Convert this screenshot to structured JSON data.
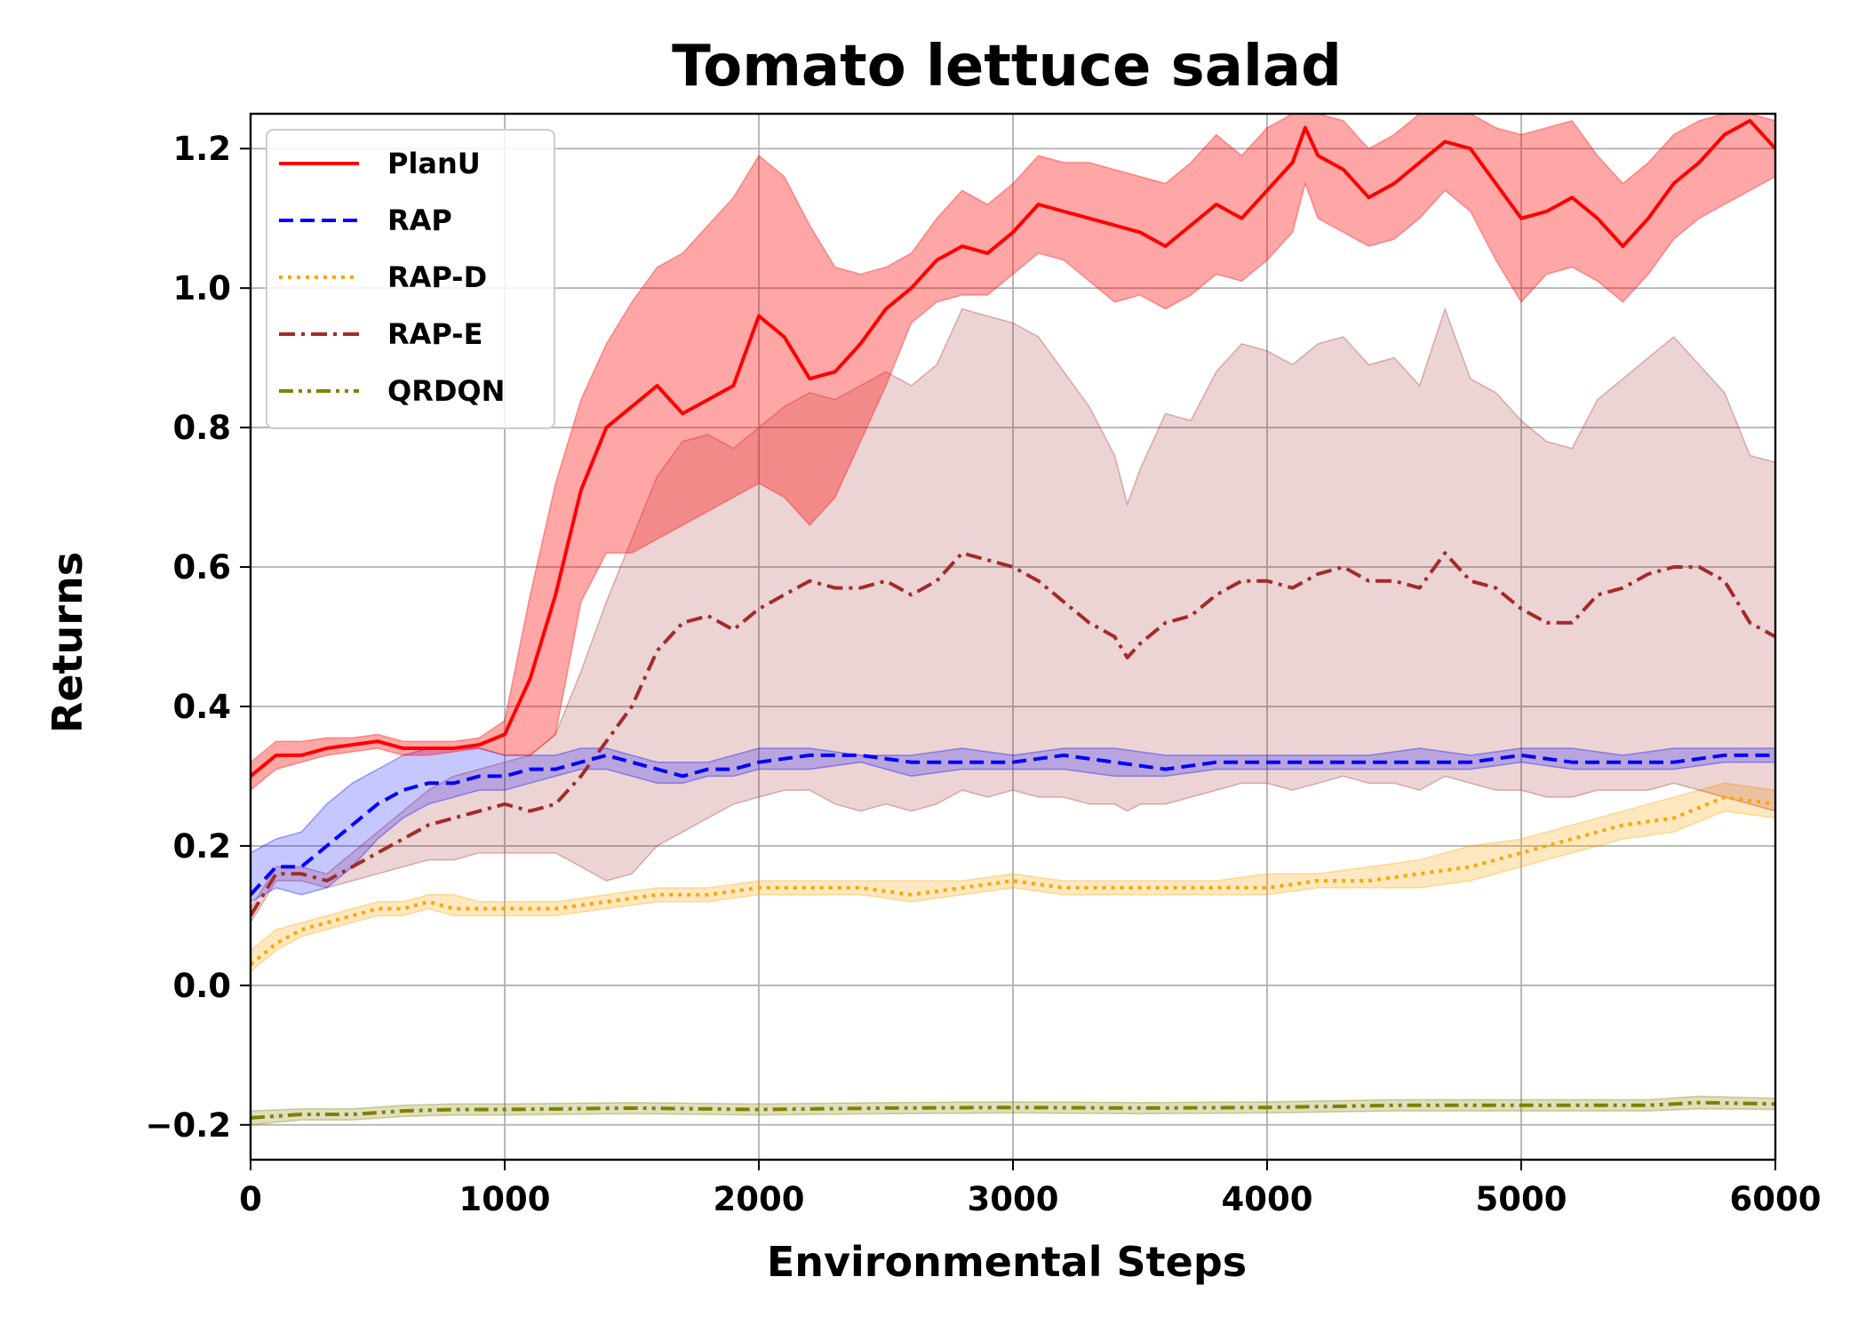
{
  "chart_data": {
    "type": "line",
    "title": "Tomato lettuce salad",
    "xlabel": "Environmental Steps",
    "ylabel": "Returns",
    "xlim": [
      0,
      6000
    ],
    "ylim": [
      -0.25,
      1.25
    ],
    "xticks": [
      0,
      1000,
      2000,
      3000,
      4000,
      5000,
      6000
    ],
    "xtick_labels": [
      "0",
      "1000",
      "2000",
      "3000",
      "4000",
      "5000",
      "6000"
    ],
    "yticks": [
      -0.2,
      0.0,
      0.2,
      0.4,
      0.6,
      0.8,
      1.0,
      1.2
    ],
    "ytick_labels": [
      "−0.2",
      "0.0",
      "0.2",
      "0.4",
      "0.6",
      "0.8",
      "1.0",
      "1.2"
    ],
    "grid": true,
    "legend_position": "top-left",
    "series": [
      {
        "name": "PlanU",
        "color": "#ff0000",
        "dash": "solid",
        "x": [
          0,
          100,
          200,
          300,
          400,
          500,
          600,
          700,
          800,
          900,
          1000,
          1100,
          1200,
          1300,
          1400,
          1500,
          1600,
          1700,
          1800,
          1900,
          2000,
          2100,
          2200,
          2300,
          2400,
          2500,
          2600,
          2700,
          2800,
          2900,
          3000,
          3100,
          3200,
          3300,
          3400,
          3500,
          3600,
          3700,
          3800,
          3900,
          4000,
          4100,
          4150,
          4200,
          4300,
          4400,
          4500,
          4600,
          4700,
          4800,
          4900,
          5000,
          5100,
          5200,
          5300,
          5400,
          5500,
          5600,
          5700,
          5800,
          5900,
          6000
        ],
        "y": [
          0.3,
          0.33,
          0.33,
          0.34,
          0.345,
          0.35,
          0.34,
          0.34,
          0.34,
          0.345,
          0.36,
          0.44,
          0.56,
          0.71,
          0.8,
          0.83,
          0.86,
          0.82,
          0.84,
          0.86,
          0.96,
          0.93,
          0.87,
          0.88,
          0.92,
          0.97,
          1.0,
          1.04,
          1.06,
          1.05,
          1.08,
          1.12,
          1.11,
          1.1,
          1.09,
          1.08,
          1.06,
          1.09,
          1.12,
          1.1,
          1.14,
          1.18,
          1.23,
          1.19,
          1.17,
          1.13,
          1.15,
          1.18,
          1.21,
          1.2,
          1.15,
          1.1,
          1.11,
          1.13,
          1.1,
          1.06,
          1.1,
          1.15,
          1.18,
          1.22,
          1.24,
          1.2
        ],
        "band_low": [
          0.28,
          0.31,
          0.32,
          0.33,
          0.335,
          0.34,
          0.33,
          0.33,
          0.335,
          0.34,
          0.33,
          0.33,
          0.36,
          0.55,
          0.62,
          0.62,
          0.64,
          0.66,
          0.68,
          0.7,
          0.72,
          0.7,
          0.66,
          0.7,
          0.78,
          0.86,
          0.95,
          0.98,
          0.99,
          0.99,
          1.02,
          1.05,
          1.04,
          1.01,
          0.98,
          0.99,
          0.97,
          0.99,
          1.02,
          1.01,
          1.04,
          1.08,
          1.15,
          1.1,
          1.08,
          1.06,
          1.07,
          1.1,
          1.14,
          1.11,
          1.04,
          0.98,
          1.02,
          1.03,
          1.01,
          0.98,
          1.02,
          1.07,
          1.1,
          1.12,
          1.14,
          1.16
        ],
        "band_high": [
          0.32,
          0.35,
          0.35,
          0.355,
          0.355,
          0.36,
          0.35,
          0.35,
          0.35,
          0.355,
          0.38,
          0.56,
          0.72,
          0.84,
          0.92,
          0.98,
          1.03,
          1.05,
          1.09,
          1.13,
          1.19,
          1.16,
          1.09,
          1.03,
          1.02,
          1.03,
          1.05,
          1.1,
          1.14,
          1.12,
          1.15,
          1.19,
          1.18,
          1.18,
          1.17,
          1.16,
          1.15,
          1.18,
          1.22,
          1.19,
          1.23,
          1.25,
          1.25,
          1.25,
          1.24,
          1.2,
          1.22,
          1.25,
          1.25,
          1.25,
          1.23,
          1.22,
          1.23,
          1.24,
          1.19,
          1.15,
          1.18,
          1.22,
          1.24,
          1.25,
          1.25,
          1.24
        ]
      },
      {
        "name": "RAP",
        "color": "#0000ff",
        "dash": "dashed",
        "x": [
          0,
          100,
          200,
          300,
          400,
          500,
          600,
          700,
          800,
          900,
          1000,
          1100,
          1200,
          1300,
          1400,
          1500,
          1600,
          1700,
          1800,
          1900,
          2000,
          2200,
          2400,
          2600,
          2800,
          3000,
          3200,
          3400,
          3600,
          3800,
          4000,
          4200,
          4400,
          4600,
          4800,
          5000,
          5200,
          5400,
          5600,
          5800,
          6000
        ],
        "y": [
          0.13,
          0.17,
          0.17,
          0.2,
          0.23,
          0.26,
          0.28,
          0.29,
          0.29,
          0.3,
          0.3,
          0.31,
          0.31,
          0.32,
          0.33,
          0.32,
          0.31,
          0.3,
          0.31,
          0.31,
          0.32,
          0.33,
          0.33,
          0.32,
          0.32,
          0.32,
          0.33,
          0.32,
          0.31,
          0.32,
          0.32,
          0.32,
          0.32,
          0.32,
          0.32,
          0.33,
          0.32,
          0.32,
          0.32,
          0.33,
          0.33
        ],
        "band_low": [
          0.12,
          0.14,
          0.13,
          0.14,
          0.17,
          0.21,
          0.24,
          0.26,
          0.27,
          0.28,
          0.28,
          0.29,
          0.3,
          0.31,
          0.31,
          0.3,
          0.29,
          0.29,
          0.3,
          0.3,
          0.31,
          0.31,
          0.32,
          0.3,
          0.31,
          0.31,
          0.31,
          0.3,
          0.3,
          0.31,
          0.31,
          0.31,
          0.31,
          0.31,
          0.31,
          0.32,
          0.31,
          0.31,
          0.31,
          0.32,
          0.32
        ],
        "band_high": [
          0.19,
          0.21,
          0.22,
          0.26,
          0.29,
          0.31,
          0.33,
          0.34,
          0.34,
          0.34,
          0.33,
          0.33,
          0.33,
          0.34,
          0.34,
          0.33,
          0.32,
          0.32,
          0.32,
          0.33,
          0.34,
          0.34,
          0.33,
          0.33,
          0.34,
          0.33,
          0.34,
          0.34,
          0.33,
          0.33,
          0.33,
          0.33,
          0.33,
          0.34,
          0.33,
          0.34,
          0.34,
          0.33,
          0.34,
          0.34,
          0.34
        ]
      },
      {
        "name": "RAP-D",
        "color": "#ffa500",
        "dash": "dotted",
        "x": [
          0,
          100,
          200,
          300,
          400,
          500,
          600,
          700,
          800,
          900,
          1000,
          1200,
          1400,
          1600,
          1800,
          2000,
          2200,
          2400,
          2600,
          2800,
          3000,
          3200,
          3400,
          3600,
          3800,
          4000,
          4200,
          4400,
          4600,
          4800,
          5000,
          5200,
          5400,
          5600,
          5800,
          6000
        ],
        "y": [
          0.03,
          0.06,
          0.08,
          0.09,
          0.1,
          0.11,
          0.11,
          0.12,
          0.11,
          0.11,
          0.11,
          0.11,
          0.12,
          0.13,
          0.13,
          0.14,
          0.14,
          0.14,
          0.13,
          0.14,
          0.15,
          0.14,
          0.14,
          0.14,
          0.14,
          0.14,
          0.15,
          0.15,
          0.16,
          0.17,
          0.19,
          0.21,
          0.23,
          0.24,
          0.27,
          0.26
        ],
        "band_low": [
          0.02,
          0.05,
          0.07,
          0.08,
          0.09,
          0.1,
          0.1,
          0.11,
          0.1,
          0.1,
          0.1,
          0.1,
          0.11,
          0.12,
          0.12,
          0.13,
          0.13,
          0.13,
          0.12,
          0.13,
          0.14,
          0.13,
          0.13,
          0.13,
          0.13,
          0.13,
          0.14,
          0.14,
          0.14,
          0.15,
          0.17,
          0.19,
          0.21,
          0.22,
          0.25,
          0.24
        ],
        "band_high": [
          0.05,
          0.08,
          0.09,
          0.1,
          0.11,
          0.12,
          0.12,
          0.13,
          0.13,
          0.12,
          0.12,
          0.12,
          0.13,
          0.14,
          0.14,
          0.15,
          0.15,
          0.15,
          0.15,
          0.15,
          0.16,
          0.15,
          0.15,
          0.15,
          0.15,
          0.16,
          0.16,
          0.17,
          0.18,
          0.2,
          0.21,
          0.23,
          0.25,
          0.27,
          0.29,
          0.28
        ]
      },
      {
        "name": "RAP-E",
        "color": "#a52a2a",
        "dash": "dashdot",
        "x": [
          0,
          100,
          200,
          300,
          400,
          500,
          600,
          700,
          800,
          900,
          1000,
          1100,
          1200,
          1300,
          1400,
          1500,
          1600,
          1700,
          1800,
          1900,
          2000,
          2100,
          2200,
          2300,
          2400,
          2500,
          2600,
          2700,
          2800,
          2900,
          3000,
          3100,
          3200,
          3300,
          3400,
          3450,
          3500,
          3600,
          3700,
          3800,
          3900,
          4000,
          4100,
          4200,
          4300,
          4400,
          4500,
          4600,
          4700,
          4800,
          4900,
          5000,
          5100,
          5200,
          5300,
          5400,
          5500,
          5600,
          5700,
          5800,
          5900,
          6000
        ],
        "y": [
          0.1,
          0.16,
          0.16,
          0.15,
          0.17,
          0.19,
          0.21,
          0.23,
          0.24,
          0.25,
          0.26,
          0.25,
          0.26,
          0.3,
          0.35,
          0.4,
          0.48,
          0.52,
          0.53,
          0.51,
          0.54,
          0.56,
          0.58,
          0.57,
          0.57,
          0.58,
          0.56,
          0.58,
          0.62,
          0.61,
          0.6,
          0.58,
          0.55,
          0.52,
          0.5,
          0.47,
          0.49,
          0.52,
          0.53,
          0.56,
          0.58,
          0.58,
          0.57,
          0.59,
          0.6,
          0.58,
          0.58,
          0.57,
          0.62,
          0.58,
          0.57,
          0.54,
          0.52,
          0.52,
          0.56,
          0.57,
          0.59,
          0.6,
          0.6,
          0.58,
          0.52,
          0.5
        ],
        "band_low": [
          0.09,
          0.15,
          0.15,
          0.14,
          0.15,
          0.16,
          0.17,
          0.18,
          0.18,
          0.19,
          0.19,
          0.19,
          0.19,
          0.17,
          0.15,
          0.16,
          0.2,
          0.22,
          0.24,
          0.26,
          0.27,
          0.28,
          0.28,
          0.26,
          0.25,
          0.26,
          0.25,
          0.26,
          0.28,
          0.27,
          0.28,
          0.27,
          0.27,
          0.26,
          0.26,
          0.25,
          0.26,
          0.26,
          0.27,
          0.28,
          0.29,
          0.29,
          0.28,
          0.29,
          0.3,
          0.29,
          0.29,
          0.28,
          0.3,
          0.29,
          0.28,
          0.28,
          0.27,
          0.27,
          0.28,
          0.28,
          0.28,
          0.29,
          0.28,
          0.27,
          0.26,
          0.25
        ],
        "band_high": [
          0.11,
          0.17,
          0.17,
          0.16,
          0.19,
          0.22,
          0.25,
          0.28,
          0.3,
          0.31,
          0.32,
          0.33,
          0.36,
          0.45,
          0.55,
          0.64,
          0.73,
          0.78,
          0.79,
          0.77,
          0.8,
          0.83,
          0.85,
          0.84,
          0.86,
          0.88,
          0.86,
          0.89,
          0.97,
          0.96,
          0.95,
          0.93,
          0.88,
          0.83,
          0.76,
          0.69,
          0.74,
          0.82,
          0.81,
          0.88,
          0.92,
          0.91,
          0.89,
          0.92,
          0.93,
          0.89,
          0.9,
          0.86,
          0.97,
          0.87,
          0.85,
          0.81,
          0.78,
          0.77,
          0.84,
          0.87,
          0.9,
          0.93,
          0.89,
          0.85,
          0.76,
          0.75
        ]
      },
      {
        "name": "QRDQN",
        "color": "#808000",
        "dash": "dashdotdot",
        "x": [
          0,
          200,
          400,
          600,
          800,
          1000,
          1500,
          2000,
          2500,
          3000,
          3500,
          4000,
          4500,
          5000,
          5500,
          5700,
          6000
        ],
        "y": [
          -0.19,
          -0.185,
          -0.185,
          -0.18,
          -0.178,
          -0.178,
          -0.176,
          -0.178,
          -0.176,
          -0.175,
          -0.176,
          -0.175,
          -0.172,
          -0.172,
          -0.172,
          -0.168,
          -0.17
        ],
        "band_low": [
          -0.2,
          -0.193,
          -0.193,
          -0.188,
          -0.186,
          -0.186,
          -0.184,
          -0.186,
          -0.184,
          -0.183,
          -0.184,
          -0.183,
          -0.18,
          -0.18,
          -0.18,
          -0.177,
          -0.178
        ],
        "band_high": [
          -0.18,
          -0.177,
          -0.177,
          -0.172,
          -0.17,
          -0.17,
          -0.168,
          -0.17,
          -0.168,
          -0.167,
          -0.168,
          -0.167,
          -0.164,
          -0.164,
          -0.164,
          -0.159,
          -0.162
        ]
      }
    ]
  }
}
